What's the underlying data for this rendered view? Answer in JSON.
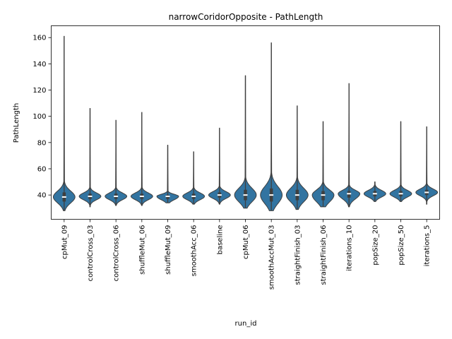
{
  "chart_data": {
    "type": "violin",
    "title": "narrowCoridorOpposite - PathLength",
    "xlabel": "run_id",
    "ylabel": "PathLength",
    "ylim": [
      21.5,
      169
    ],
    "yticks": [
      40,
      60,
      80,
      100,
      120,
      140,
      160
    ],
    "color": "#3274a1",
    "grid": false,
    "categories": [
      "cpMut_09",
      "controlCross_03",
      "controlCross_06",
      "shuffleMut_06",
      "shuffleMut_09",
      "smoothAcc_06",
      "baseline",
      "cpMut_06",
      "smoothAccMut_03",
      "straightFinish_03",
      "straightFinish_06",
      "iterations_10",
      "popSize_20",
      "popSize_50",
      "iterations_5"
    ],
    "series": [
      {
        "category": "cpMut_09",
        "min": 28,
        "max": 161,
        "q1": 35,
        "median": 38.5,
        "q3": 42
      },
      {
        "category": "controlCross_03",
        "min": 31,
        "max": 106,
        "q1": 37,
        "median": 39,
        "q3": 41
      },
      {
        "category": "controlCross_06",
        "min": 32,
        "max": 97,
        "q1": 37,
        "median": 39,
        "q3": 41
      },
      {
        "category": "shuffleMut_06",
        "min": 32,
        "max": 103,
        "q1": 37,
        "median": 39,
        "q3": 41
      },
      {
        "category": "shuffleMut_09",
        "min": 34,
        "max": 78,
        "q1": 37,
        "median": 39,
        "q3": 40
      },
      {
        "category": "smoothAcc_06",
        "min": 33,
        "max": 73,
        "q1": 37,
        "median": 39,
        "q3": 41
      },
      {
        "category": "baseline",
        "min": 33,
        "max": 91,
        "q1": 38,
        "median": 40,
        "q3": 42
      },
      {
        "category": "cpMut_06",
        "min": 30,
        "max": 131,
        "q1": 36,
        "median": 40,
        "q3": 44
      },
      {
        "category": "smoothAccMut_03",
        "min": 28,
        "max": 156,
        "q1": 35,
        "median": 40,
        "q3": 45
      },
      {
        "category": "straightFinish_03",
        "min": 29,
        "max": 108,
        "q1": 36,
        "median": 40,
        "q3": 44
      },
      {
        "category": "straightFinish_06",
        "min": 31,
        "max": 96,
        "q1": 36,
        "median": 40,
        "q3": 43
      },
      {
        "category": "iterations_10",
        "min": 31,
        "max": 125,
        "q1": 38,
        "median": 41,
        "q3": 43
      },
      {
        "category": "popSize_20",
        "min": 35,
        "max": 50,
        "q1": 39,
        "median": 41,
        "q3": 43
      },
      {
        "category": "popSize_50",
        "min": 35,
        "max": 96,
        "q1": 39,
        "median": 41,
        "q3": 43
      },
      {
        "category": "iterations_5",
        "min": 33,
        "max": 92,
        "q1": 40,
        "median": 42,
        "q3": 44
      }
    ]
  }
}
